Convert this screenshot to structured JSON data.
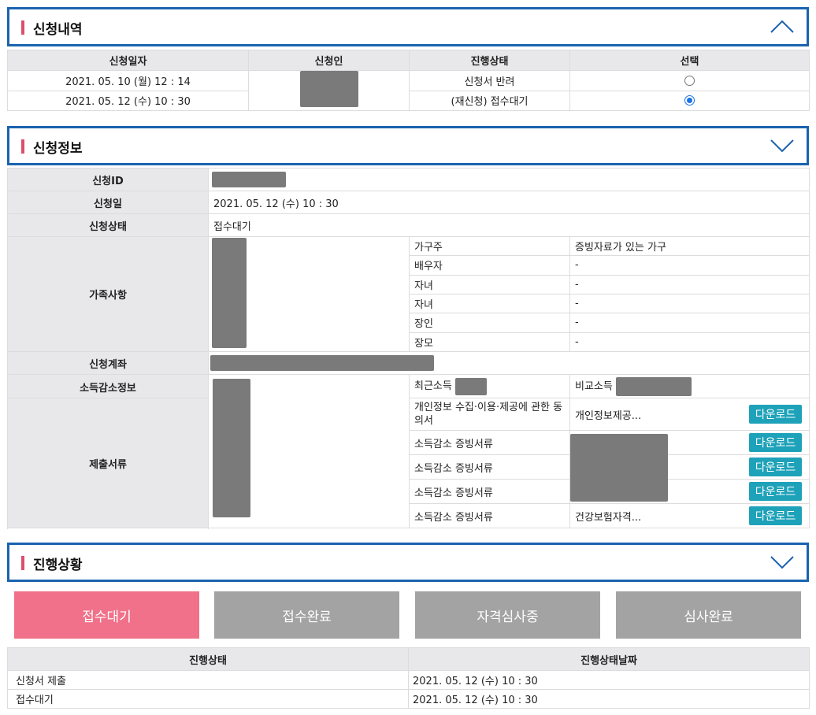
{
  "history": {
    "title": "신청내역",
    "headers": [
      "신청일자",
      "신청인",
      "진행상태",
      "선택"
    ],
    "rows": [
      {
        "date": "2021. 05. 10 (월) 12 : 14",
        "status": "신청서 반려",
        "selected": false
      },
      {
        "date": "2021. 05. 12 (수) 10 : 30",
        "status": "(재신청) 접수대기",
        "selected": true
      }
    ]
  },
  "info": {
    "title": "신청정보",
    "labels": {
      "id": "신청ID",
      "date": "신청일",
      "status": "신청상태",
      "family": "가족사항",
      "account": "신청계좌",
      "income": "소득감소정보",
      "docs": "제출서류"
    },
    "date_value": "2021. 05. 12 (수) 10 : 30",
    "status_value": "접수대기",
    "family": [
      {
        "relation": "가구주",
        "note": "증빙자료가 있는 가구"
      },
      {
        "relation": "배우자",
        "note": "-"
      },
      {
        "relation": "자녀",
        "note": "-"
      },
      {
        "relation": "자녀",
        "note": "-"
      },
      {
        "relation": "장인",
        "note": "-"
      },
      {
        "relation": "장모",
        "note": "-"
      }
    ],
    "income_recent_label": "최근소득",
    "income_compare_label": "비교소득",
    "docs": [
      {
        "name": "개인정보 수집·이용·제공에 관한 동의서",
        "file": "개인정보제공...",
        "button": "다운로드"
      },
      {
        "name": "소득감소 증빙서류",
        "file": "",
        "button": "다운로드"
      },
      {
        "name": "소득감소 증빙서류",
        "file": "",
        "button": "다운로드"
      },
      {
        "name": "소득감소 증빙서류",
        "file": "",
        "button": "다운로드"
      },
      {
        "name": "소득감소 증빙서류",
        "file": "건강보험자격...",
        "button": "다운로드"
      }
    ]
  },
  "progress": {
    "title": "진행상황",
    "steps": [
      {
        "label": "접수대기",
        "active": true
      },
      {
        "label": "접수완료",
        "active": false
      },
      {
        "label": "자격심사중",
        "active": false
      },
      {
        "label": "심사완료",
        "active": false
      }
    ],
    "headers": [
      "진행상태",
      "진행상태날짜"
    ],
    "rows": [
      {
        "status": "신청서 제출",
        "date": "2021. 05. 12 (수) 10 : 30"
      },
      {
        "status": "접수대기",
        "date": "2021. 05. 12 (수) 10 : 30"
      }
    ]
  },
  "colors": {
    "header_border": "#1a63b0",
    "accent_bar": "#d9506f",
    "active_step": "#f07189",
    "inactive_step": "#a3a3a3",
    "download_button": "#1ea2b9",
    "radio_checked": "#1a73e8"
  },
  "icons": {
    "collapse": "chevron-up-icon",
    "expand": "chevron-down-icon"
  }
}
